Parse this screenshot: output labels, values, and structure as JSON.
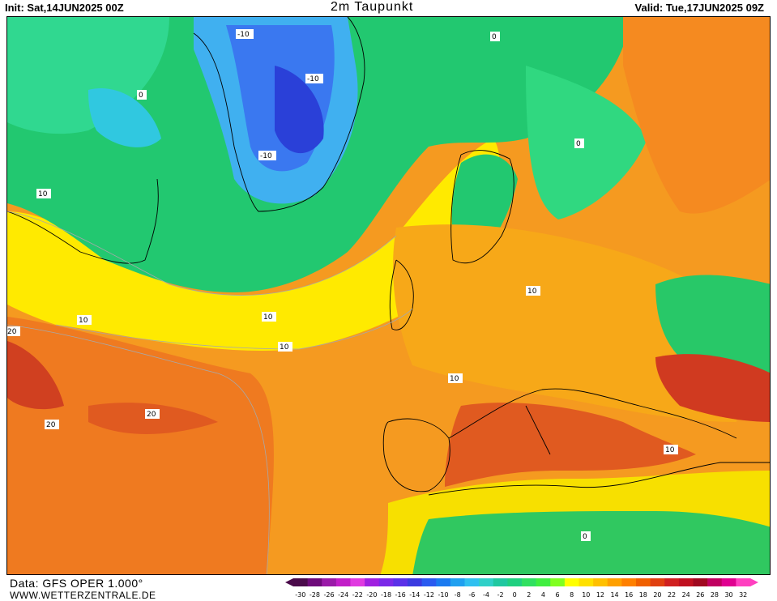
{
  "header": {
    "init": "Init: Sat,14JUN2025 00Z",
    "title": "2m Taupunkt",
    "valid": "Valid: Tue,17JUN2025 09Z"
  },
  "map": {
    "contour_labels": [
      "-10",
      "0",
      "10",
      "20"
    ]
  },
  "footer": {
    "data_source": "Data: GFS OPER 1.000°",
    "website": "WWW.WETTERZENTRALE.DE"
  },
  "legend": {
    "ticks": [
      "-30",
      "-28",
      "-26",
      "-24",
      "-22",
      "-20",
      "-18",
      "-16",
      "-14",
      "-12",
      "-10",
      "-8",
      "-6",
      "-4",
      "-2",
      "0",
      "2",
      "4",
      "6",
      "8",
      "10",
      "12",
      "14",
      "16",
      "18",
      "20",
      "22",
      "24",
      "26",
      "28",
      "30",
      "32"
    ],
    "colors": [
      "#4a0a4a",
      "#6e0a7a",
      "#9a1aa8",
      "#c21ec8",
      "#e03ae0",
      "#a020e0",
      "#7a28e8",
      "#5a30e8",
      "#3a3ae0",
      "#2a5af0",
      "#1a7af0",
      "#20a0f0",
      "#30c0f0",
      "#30d0c8",
      "#20c8a0",
      "#20d080",
      "#30e060",
      "#40ee40",
      "#80ff20",
      "#ffff00",
      "#ffe000",
      "#ffc000",
      "#ffa000",
      "#ff8000",
      "#f06000",
      "#e04010",
      "#d02020",
      "#c01020",
      "#a00820",
      "#c00060",
      "#e00090",
      "#ff40c0"
    ]
  }
}
